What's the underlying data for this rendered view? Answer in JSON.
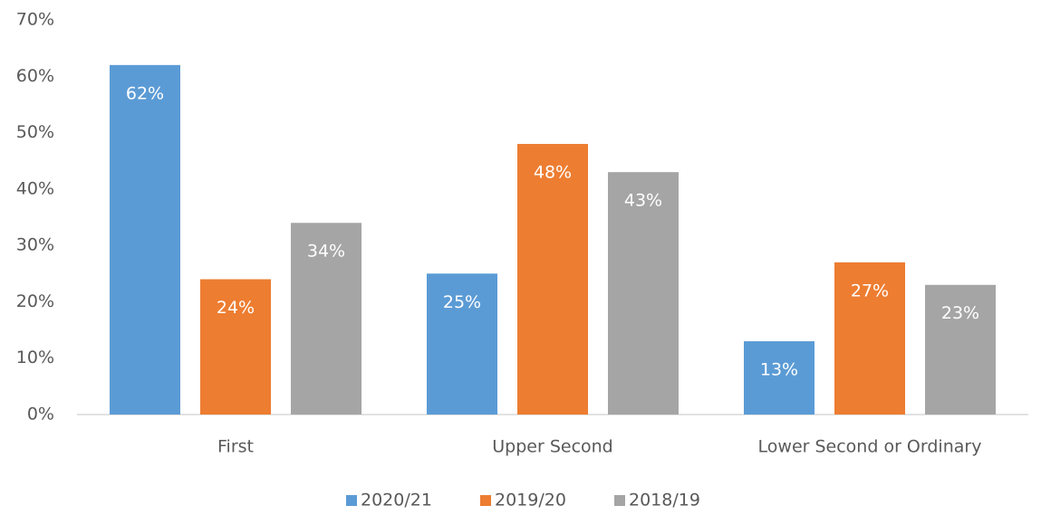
{
  "chart_data": {
    "type": "bar",
    "categories": [
      "First",
      "Upper Second",
      "Lower Second or Ordinary"
    ],
    "series": [
      {
        "name": "2020/21",
        "color": "#5b9bd5",
        "values": [
          62,
          25,
          13
        ],
        "value_labels": [
          "62%",
          "25%",
          "13%"
        ]
      },
      {
        "name": "2019/20",
        "color": "#ed7d31",
        "values": [
          24,
          48,
          27
        ],
        "value_labels": [
          "24%",
          "48%",
          "27%"
        ]
      },
      {
        "name": "2018/19",
        "color": "#a5a5a5",
        "values": [
          34,
          43,
          23
        ],
        "value_labels": [
          "34%",
          "43%",
          "23%"
        ]
      }
    ],
    "ylim": [
      0,
      70
    ],
    "yticks": [
      {
        "value": 0,
        "label": "0%"
      },
      {
        "value": 10,
        "label": "10%"
      },
      {
        "value": 20,
        "label": "20%"
      },
      {
        "value": 30,
        "label": "30%"
      },
      {
        "value": 40,
        "label": "40%"
      },
      {
        "value": 50,
        "label": "50%"
      },
      {
        "value": 60,
        "label": "60%"
      },
      {
        "value": 70,
        "label": "70%"
      }
    ],
    "grid": false,
    "legend": "bottom"
  }
}
